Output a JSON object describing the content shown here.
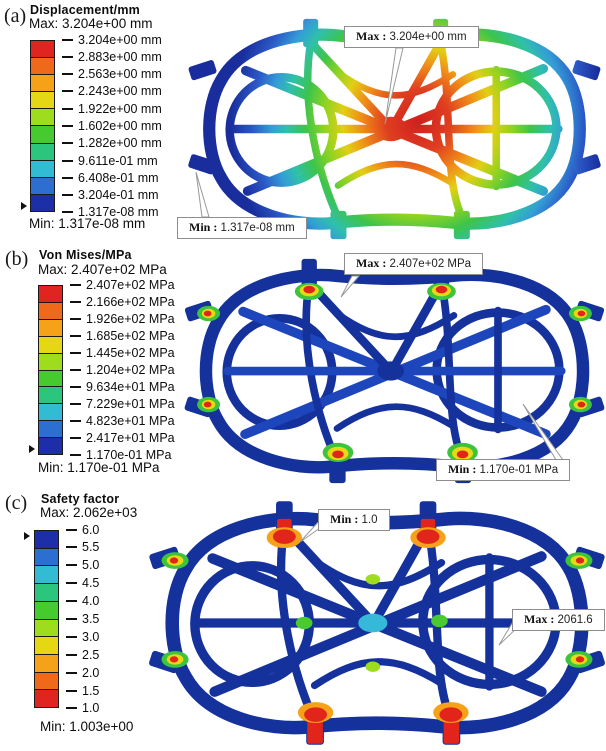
{
  "panels": [
    {
      "tag": "(a)",
      "title": "Displacement/mm",
      "max_label": "Max: 3.204e+00 mm",
      "min_label": "Min: 1.317e-08 mm",
      "scale": [
        "3.204e+00 mm",
        "2.883e+00 mm",
        "2.563e+00 mm",
        "2.243e+00 mm",
        "1.922e+00 mm",
        "1.602e+00 mm",
        "1.282e+00 mm",
        "9.611e-01 mm",
        "6.408e-01 mm",
        "3.204e-01 mm",
        "1.317e-08 mm"
      ],
      "colors": [
        "#e02520",
        "#ee6a1a",
        "#f6a218",
        "#e6d714",
        "#9edc1e",
        "#46cb2e",
        "#2cc57e",
        "#31bcd4",
        "#2c6fd0",
        "#1c2fa9"
      ],
      "callouts": [
        {
          "label": "Max :",
          "value": "3.204e+00 mm"
        },
        {
          "label": "Min :",
          "value": "1.317e-08 mm"
        }
      ]
    },
    {
      "tag": "(b)",
      "title": "Von Mises/MPa",
      "max_label": "Max: 2.407e+02 MPa",
      "min_label": "Min: 1.170e-01 MPa",
      "scale": [
        "2.407e+02 MPa",
        "2.166e+02 MPa",
        "1.926e+02 MPa",
        "1.685e+02 MPa",
        "1.445e+02 MPa",
        "1.204e+02 MPa",
        "9.634e+01 MPa",
        "7.229e+01 MPa",
        "4.823e+01 MPa",
        "2.417e+01 MPa",
        "1.170e-01 MPa"
      ],
      "colors": [
        "#e02520",
        "#ee6a1a",
        "#f6a218",
        "#e6d714",
        "#9edc1e",
        "#46cb2e",
        "#2cc57e",
        "#31bcd4",
        "#2c6fd0",
        "#1c2fa9"
      ],
      "callouts": [
        {
          "label": "Max :",
          "value": "2.407e+02 MPa"
        },
        {
          "label": "Min :",
          "value": "1.170e-01 MPa"
        }
      ]
    },
    {
      "tag": "(c)",
      "title": "Safety factor",
      "max_label": "Max: 2.062e+03",
      "min_label": "Min: 1.003e+00",
      "scale": [
        "6.0",
        "5.5",
        "5.0",
        "4.5",
        "4.0",
        "3.5",
        "3.0",
        "2.5",
        "2.0",
        "1.5",
        "1.0"
      ],
      "colors": [
        "#1c2fa9",
        "#2c6fd0",
        "#31bcd4",
        "#2cc57e",
        "#46cb2e",
        "#9edc1e",
        "#e6d714",
        "#f6a218",
        "#ee6a1a",
        "#e02520"
      ],
      "callouts": [
        {
          "label": "Min :",
          "value": "1.0"
        },
        {
          "label": "Max :",
          "value": "2061.6"
        }
      ]
    }
  ]
}
